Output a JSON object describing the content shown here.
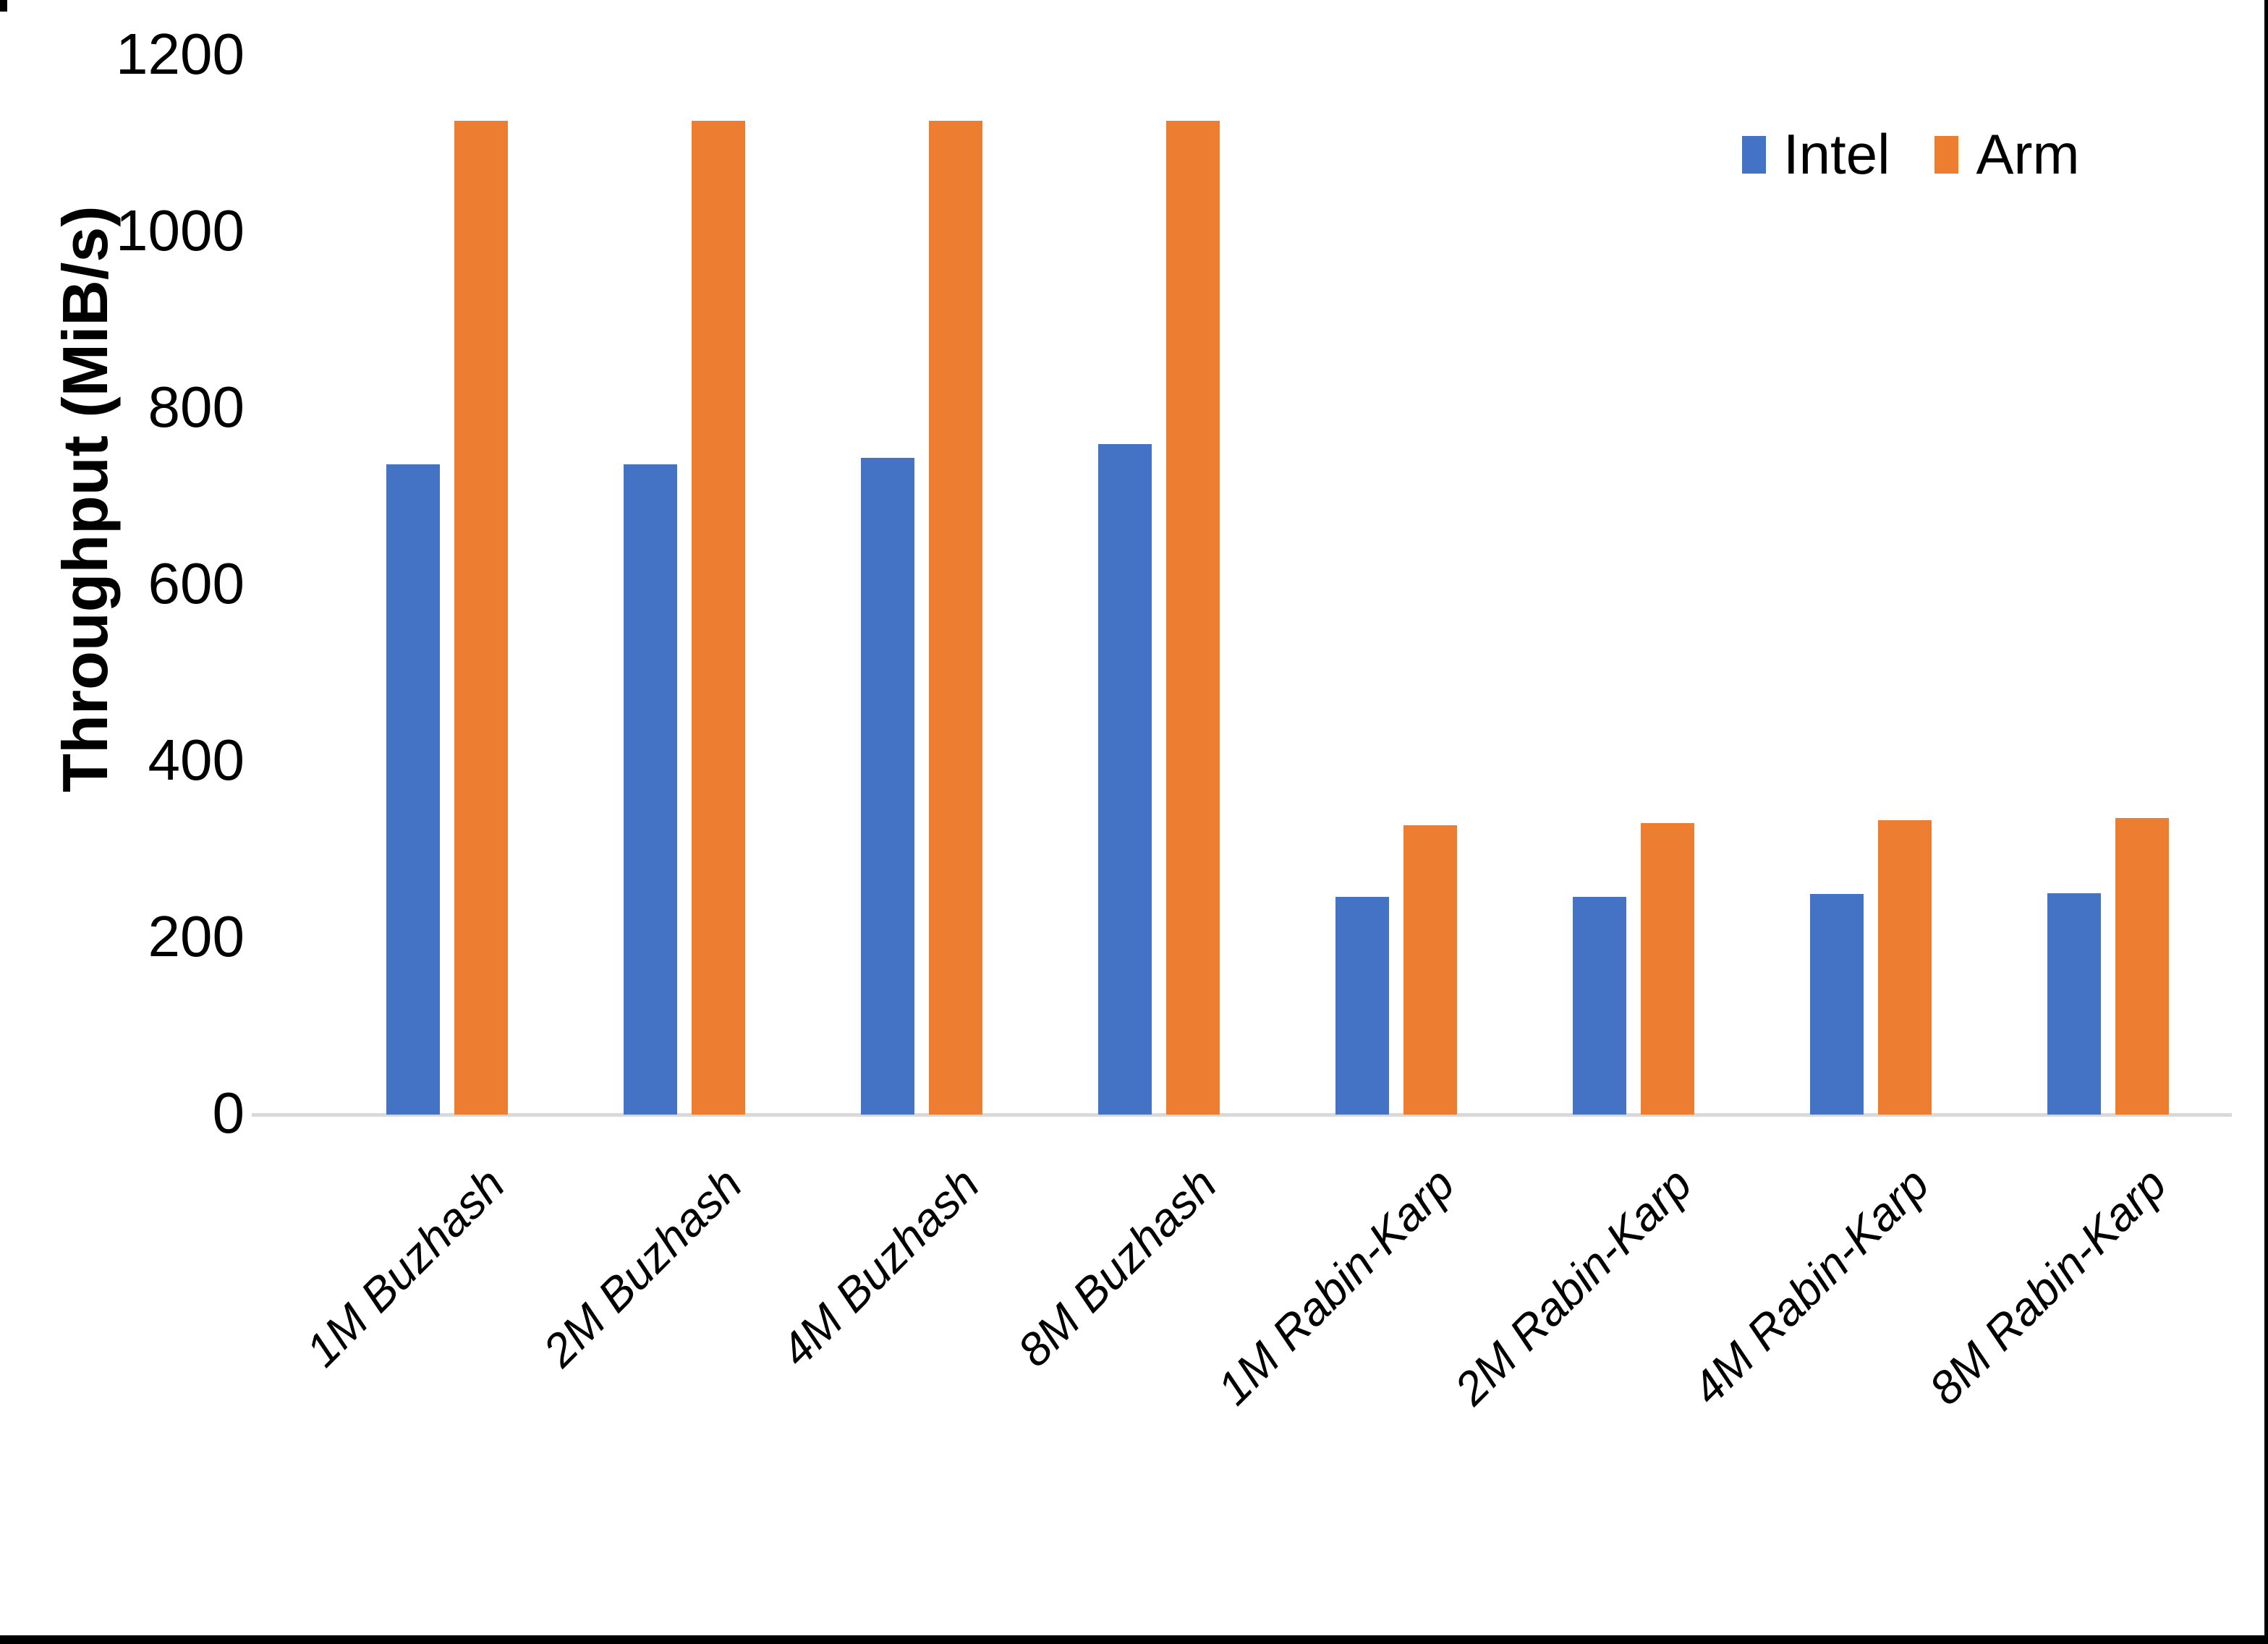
{
  "chart_data": {
    "type": "bar",
    "title": "",
    "ylabel": "Throughput (MiB/s)",
    "xlabel": "",
    "ylim": [
      0,
      1200
    ],
    "yticks": [
      0,
      200,
      400,
      600,
      800,
      1000,
      1200
    ],
    "grid": false,
    "legend_position": "top-right",
    "categories": [
      "1M Buzhash",
      "2M Buzhash",
      "4M Buzhash",
      "8M Buzhash",
      "1M Rabin-Karp",
      "2M Rabin-Karp",
      "4M Rabin-Karp",
      "8M Rabin-Karp"
    ],
    "series": [
      {
        "name": "Intel",
        "color": "#4472C4",
        "values": [
          737,
          737,
          744,
          760,
          247,
          247,
          250,
          251
        ]
      },
      {
        "name": "Arm",
        "color": "#ED7D31",
        "values": [
          1126,
          1126,
          1126,
          1126,
          328,
          330,
          334,
          336
        ]
      }
    ],
    "axis_line_color": "#D9D9D9",
    "text_color": "#000000"
  }
}
